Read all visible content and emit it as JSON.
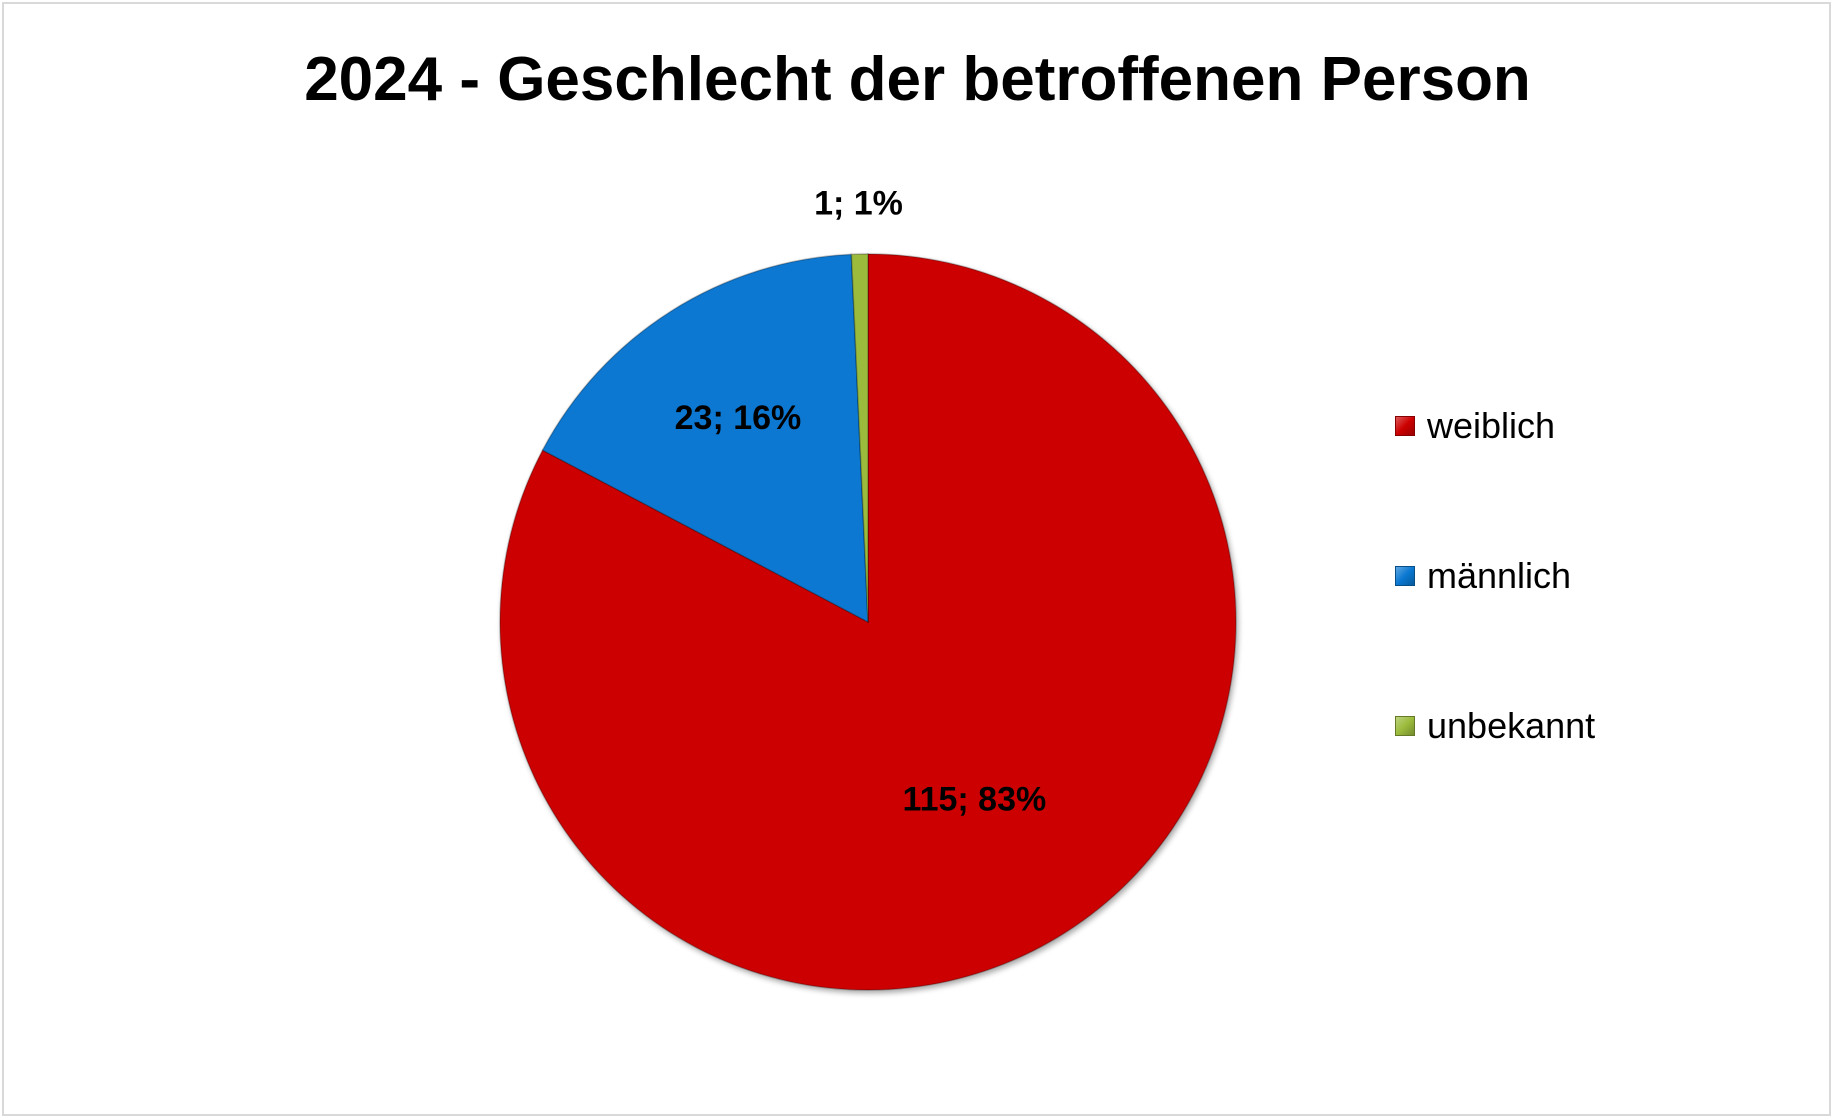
{
  "chart_data": {
    "type": "pie",
    "title": "2024 - Geschlecht der betroffenen Person",
    "slices": [
      {
        "name": "weiblich",
        "value": 115,
        "percent": 83,
        "label": "115; 83%",
        "color": "#cc0000"
      },
      {
        "name": "männlich",
        "value": 23,
        "percent": 16,
        "label": "23; 16%",
        "color": "#0a78d1"
      },
      {
        "name": "unbekannt",
        "value": 1,
        "percent": 1,
        "label": "1; 1%",
        "color": "#9bbb3c"
      }
    ],
    "legend": {
      "position": "right",
      "items": [
        "weiblich",
        "männlich",
        "unbekannt"
      ]
    }
  }
}
